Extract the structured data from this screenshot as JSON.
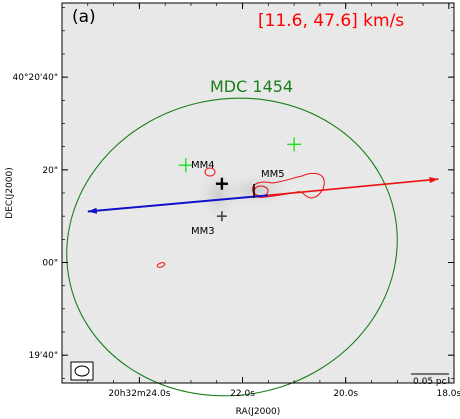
{
  "chart_data": {
    "type": "scatter",
    "panel_label": "(a)",
    "velocity_range": "[11.6, 47.6] km/s",
    "region_label": "MDC 1454",
    "xlabel": "RA(J2000)",
    "ylabel": "DEC(J2000)",
    "x_ticks": [
      {
        "label": "20h32m24.0s",
        "ra_offset_s": 0
      },
      {
        "label": "22.0s",
        "ra_offset_s": 2
      },
      {
        "label": "20.0s",
        "ra_offset_s": 4
      },
      {
        "label": "18.0s",
        "ra_offset_s": 6
      }
    ],
    "y_ticks": [
      {
        "label": "40°20'40\"",
        "dec_offset_arcsec": 40
      },
      {
        "label": "20\"",
        "dec_offset_arcsec": 20
      },
      {
        "label": "00\"",
        "dec_offset_arcsec": 0
      },
      {
        "label": "19'40\"",
        "dec_offset_arcsec": -20
      }
    ],
    "xlim_ra_offset_s": [
      -1.5,
      6.1
    ],
    "ylim_dec_offset_arcsec": [
      -26,
      56
    ],
    "sources": [
      {
        "name": "MM4",
        "ra_offset_s": 1.6,
        "dec_offset_arcsec": 17
      },
      {
        "name": "MM3",
        "ra_offset_s": 1.6,
        "dec_offset_arcsec": 10
      },
      {
        "name": "MM5",
        "ra_offset_s": 2.6,
        "dec_offset_arcsec": 14.5
      }
    ],
    "green_crosses": [
      {
        "ra_offset_s": 0.9,
        "dec_offset_arcsec": 21
      },
      {
        "ra_offset_s": 3.0,
        "dec_offset_arcsec": 25.5
      }
    ],
    "outflow": {
      "origin": {
        "ra_offset_s": 2.5,
        "dec_offset_arcsec": 14.5
      },
      "blue_end": {
        "ra_offset_s": -1.0,
        "dec_offset_arcsec": 11
      },
      "red_end": {
        "ra_offset_s": 5.8,
        "dec_offset_arcsec": 18
      }
    },
    "scale_bar": "0.05 pc",
    "colors": {
      "region": "#1a7f1a",
      "red_lobe": "#ee1111",
      "blue_lobe": "#1111cc",
      "cross": "#22dd22",
      "velocity_text": "#ff0000"
    }
  }
}
